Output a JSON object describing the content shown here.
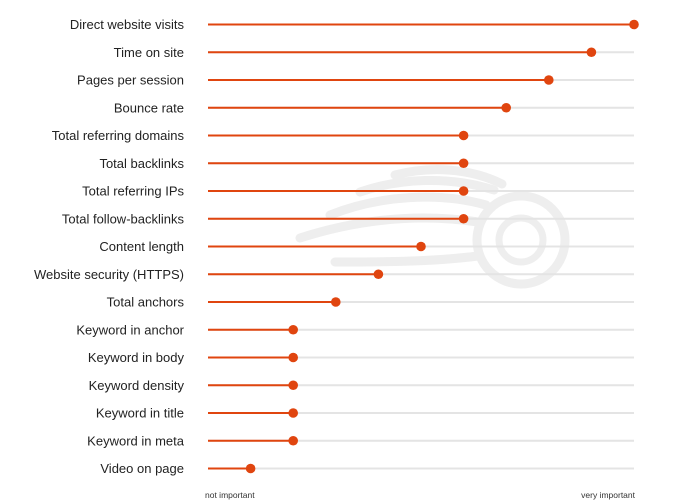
{
  "chart_data": {
    "type": "lollipop",
    "scale_label_min": "not important",
    "scale_label_max": "very important",
    "xlim": [
      0,
      100
    ],
    "categories": [
      "Direct website visits",
      "Time on site",
      "Pages per session",
      "Bounce rate",
      "Total referring domains",
      "Total backlinks",
      "Total referring IPs",
      "Total follow-backlinks",
      "Content length",
      "Website security (HTTPS)",
      "Total anchors",
      "Keyword in anchor",
      "Keyword in body",
      "Keyword density",
      "Keyword in title",
      "Keyword in meta",
      "Video on page"
    ],
    "values": [
      100,
      90,
      80,
      70,
      60,
      60,
      60,
      60,
      50,
      40,
      30,
      20,
      20,
      20,
      20,
      20,
      10
    ],
    "colors": {
      "line": "#e0450f",
      "dot": "#e0450f",
      "track": "#e4e4e4",
      "watermark": "#ececec"
    },
    "grid": false
  }
}
